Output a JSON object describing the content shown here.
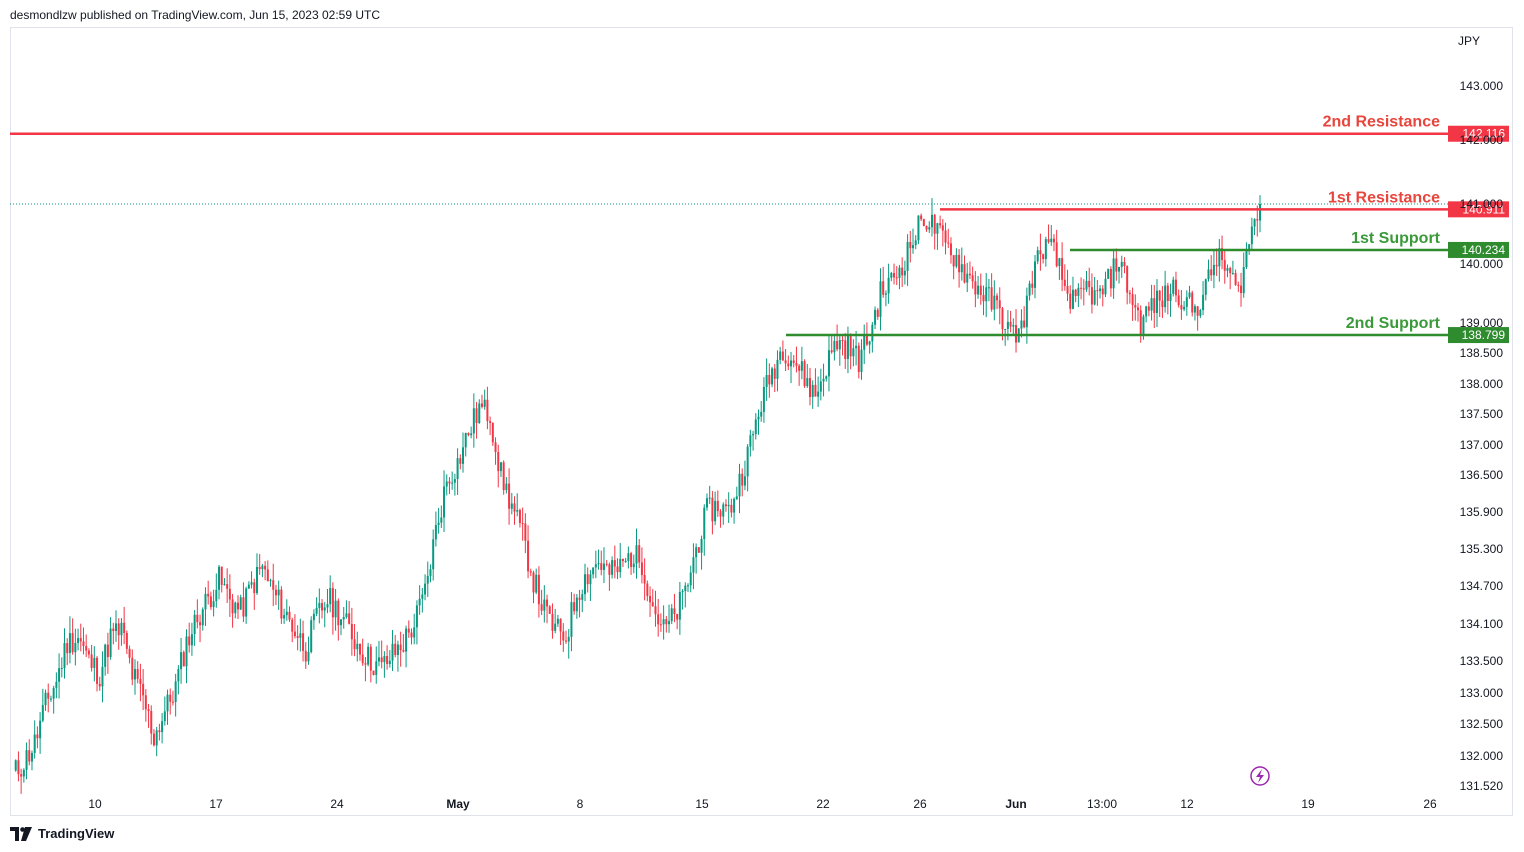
{
  "header": {
    "attribution": "desmondlzw published on TradingView.com, Jun 15, 2023 02:59 UTC"
  },
  "footer": {
    "brand": "TradingView"
  },
  "chart_data": {
    "type": "candlestick",
    "currency": "JPY",
    "y_ticks": [
      "143.000",
      "142.000",
      "141.000",
      "140.000",
      "139.000",
      "138.500",
      "138.000",
      "137.500",
      "137.000",
      "136.500",
      "135.900",
      "135.300",
      "134.700",
      "134.100",
      "133.500",
      "133.000",
      "132.500",
      "132.000",
      "131.520"
    ],
    "x_ticks": [
      {
        "label": "10",
        "bold": false
      },
      {
        "label": "17",
        "bold": false
      },
      {
        "label": "24",
        "bold": false
      },
      {
        "label": "May",
        "bold": true
      },
      {
        "label": "8",
        "bold": false
      },
      {
        "label": "15",
        "bold": false
      },
      {
        "label": "22",
        "bold": false
      },
      {
        "label": "26",
        "bold": false
      },
      {
        "label": "Jun",
        "bold": true
      },
      {
        "label": "13:00",
        "bold": false
      },
      {
        "label": "12",
        "bold": false
      },
      {
        "label": "19",
        "bold": false
      },
      {
        "label": "26",
        "bold": false
      }
    ],
    "levels": [
      {
        "name": "2nd Resistance",
        "value": 142.116,
        "price_label": "142.116",
        "color": "#f23645",
        "text_color": "#e8453c"
      },
      {
        "name": "1st Resistance",
        "value": 140.911,
        "price_label": "140.911",
        "color": "#f23645",
        "text_color": "#e8453c"
      },
      {
        "name": "1st Support",
        "value": 140.234,
        "price_label": "140.234",
        "color": "#2e8b2e",
        "text_color": "#3a9a3a"
      },
      {
        "name": "2nd Support",
        "value": 138.799,
        "price_label": "138.799",
        "color": "#2e8b2e",
        "text_color": "#3a9a3a"
      }
    ],
    "current_price": 141.0,
    "colors": {
      "up": "#089981",
      "down": "#f23645"
    },
    "price_path": [
      131.7,
      131.9,
      132.2,
      132.8,
      133.2,
      133.8,
      133.9,
      133.5,
      133.3,
      133.9,
      134.0,
      133.3,
      132.9,
      132.3,
      132.7,
      133.1,
      133.8,
      134.2,
      134.5,
      134.8,
      134.5,
      134.3,
      134.7,
      135.0,
      134.6,
      134.3,
      134.0,
      133.7,
      134.2,
      134.5,
      134.3,
      134.0,
      133.7,
      133.5,
      133.4,
      133.6,
      133.8,
      134.1,
      134.6,
      135.6,
      136.4,
      136.7,
      137.2,
      137.6,
      137.5,
      136.5,
      136.0,
      135.5,
      134.8,
      134.3,
      134.0,
      133.9,
      134.6,
      134.9,
      135.1,
      134.9,
      135.0,
      135.2,
      135.1,
      134.4,
      134.0,
      134.2,
      134.6,
      135.3,
      135.9,
      136.0,
      135.9,
      136.4,
      137.0,
      137.7,
      138.2,
      138.6,
      138.4,
      138.1,
      137.8,
      138.3,
      138.7,
      138.6,
      138.4,
      138.8,
      139.5,
      139.7,
      140.0,
      140.4,
      140.8,
      140.6,
      140.3,
      140.1,
      139.8,
      139.6,
      139.4,
      139.2,
      138.8,
      138.9,
      139.8,
      140.3,
      140.2,
      139.6,
      139.3,
      139.6,
      139.4,
      139.7,
      140.1,
      139.5,
      139.0,
      139.3,
      139.4,
      139.6,
      139.4,
      139.2,
      139.6,
      140.1,
      139.9,
      139.5,
      140.4,
      141.0
    ]
  }
}
